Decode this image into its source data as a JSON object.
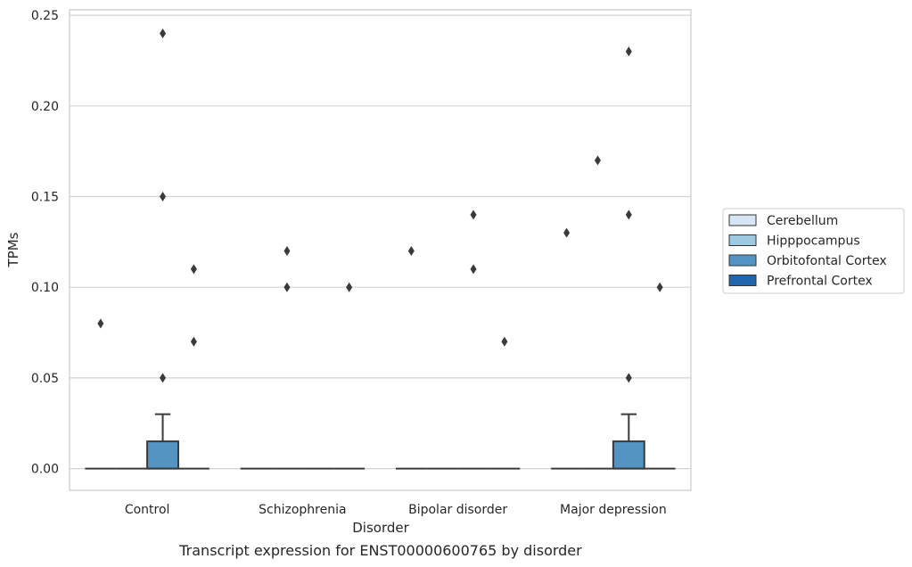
{
  "chart_data": {
    "type": "box",
    "title": "",
    "caption": "Transcript expression for ENST00000600765 by disorder",
    "xlabel": "Disorder",
    "ylabel": "TPMs",
    "categories": [
      "Control",
      "Schizophrenia",
      "Bipolar disorder",
      "Major depression"
    ],
    "ylim": [
      -0.012,
      0.253
    ],
    "yticks": [
      "0.00",
      "0.05",
      "0.10",
      "0.15",
      "0.20",
      "0.25"
    ],
    "grid": true,
    "legend_position": "right",
    "series": [
      {
        "name": "Cerebellum",
        "color": "#d6e6f4",
        "boxes": [
          {
            "q1": 0,
            "median": 0,
            "q3": 0,
            "whisker_low": 0,
            "whisker_high": 0,
            "outliers": [
              0.08
            ]
          },
          {
            "q1": 0,
            "median": 0,
            "q3": 0,
            "whisker_low": 0,
            "whisker_high": 0,
            "outliers": []
          },
          {
            "q1": 0,
            "median": 0,
            "q3": 0,
            "whisker_low": 0,
            "whisker_high": 0,
            "outliers": [
              0.12
            ]
          },
          {
            "q1": 0,
            "median": 0,
            "q3": 0,
            "whisker_low": 0,
            "whisker_high": 0,
            "outliers": [
              0.13
            ]
          }
        ]
      },
      {
        "name": "Hipppocampus",
        "color": "#9ecae1",
        "boxes": [
          {
            "q1": 0,
            "median": 0,
            "q3": 0,
            "whisker_low": 0,
            "whisker_high": 0,
            "outliers": []
          },
          {
            "q1": 0,
            "median": 0,
            "q3": 0,
            "whisker_low": 0,
            "whisker_high": 0,
            "outliers": [
              0.12,
              0.1
            ]
          },
          {
            "q1": 0,
            "median": 0,
            "q3": 0,
            "whisker_low": 0,
            "whisker_high": 0,
            "outliers": []
          },
          {
            "q1": 0,
            "median": 0,
            "q3": 0,
            "whisker_low": 0,
            "whisker_high": 0,
            "outliers": [
              0.17
            ]
          }
        ]
      },
      {
        "name": "Orbitofontal Cortex",
        "color": "#5394c4",
        "boxes": [
          {
            "q1": 0,
            "median": 0,
            "q3": 0.015,
            "whisker_low": 0,
            "whisker_high": 0.03,
            "outliers": [
              0.24,
              0.15,
              0.05
            ]
          },
          {
            "q1": 0,
            "median": 0,
            "q3": 0,
            "whisker_low": 0,
            "whisker_high": 0,
            "outliers": []
          },
          {
            "q1": 0,
            "median": 0,
            "q3": 0,
            "whisker_low": 0,
            "whisker_high": 0,
            "outliers": [
              0.14,
              0.11
            ]
          },
          {
            "q1": 0,
            "median": 0,
            "q3": 0.015,
            "whisker_low": 0,
            "whisker_high": 0.03,
            "outliers": [
              0.23,
              0.14,
              0.05
            ]
          }
        ]
      },
      {
        "name": "Prefrontal Cortex",
        "color": "#2166ac",
        "boxes": [
          {
            "q1": 0,
            "median": 0,
            "q3": 0,
            "whisker_low": 0,
            "whisker_high": 0,
            "outliers": [
              0.11,
              0.07
            ]
          },
          {
            "q1": 0,
            "median": 0,
            "q3": 0,
            "whisker_low": 0,
            "whisker_high": 0,
            "outliers": [
              0.1
            ]
          },
          {
            "q1": 0,
            "median": 0,
            "q3": 0,
            "whisker_low": 0,
            "whisker_high": 0,
            "outliers": [
              0.07
            ]
          },
          {
            "q1": 0,
            "median": 0,
            "q3": 0,
            "whisker_low": 0,
            "whisker_high": 0,
            "outliers": [
              0.1
            ]
          }
        ]
      }
    ]
  }
}
